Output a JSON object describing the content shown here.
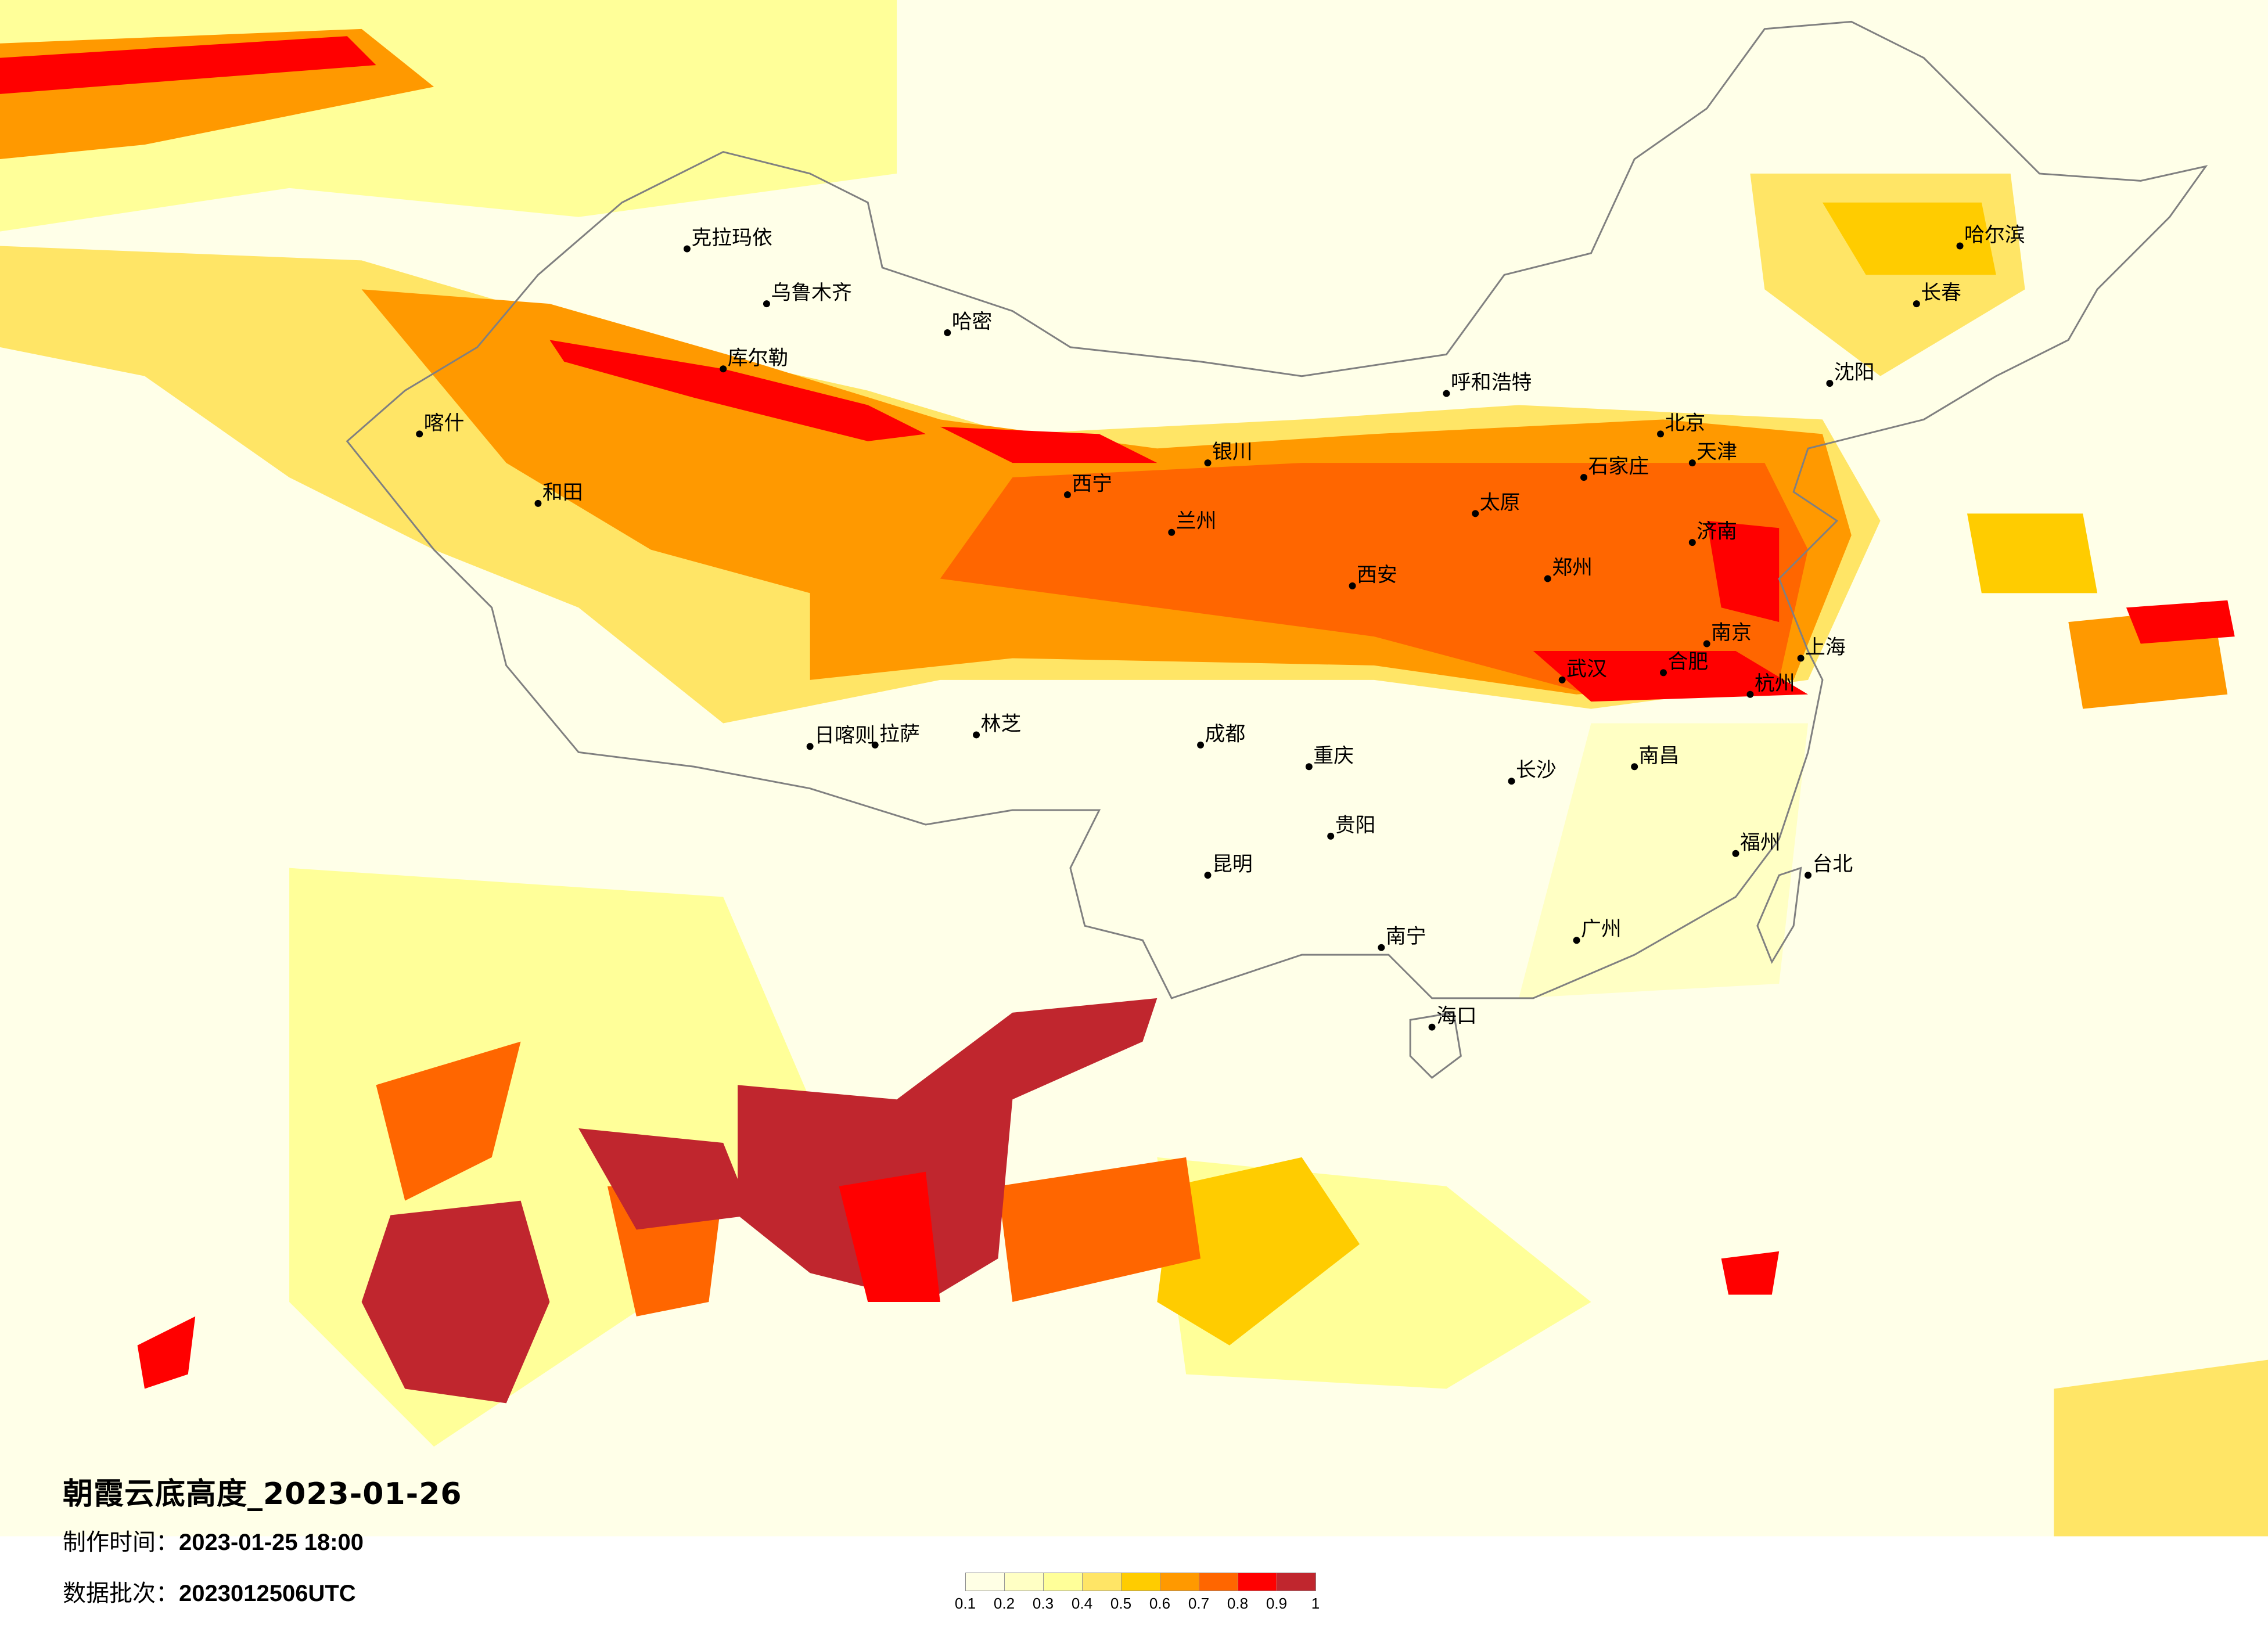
{
  "title": "朝霞云底高度_2023-01-26",
  "production_time_label": "制作时间：",
  "production_time": "2023-01-25 18:00",
  "batch_label": "数据批次：",
  "batch": "2023012506UTC",
  "legend": {
    "colors": [
      "#FFFFE5",
      "#FFFFC4",
      "#FFFF99",
      "#FFE566",
      "#FFCC00",
      "#FF9900",
      "#FF6600",
      "#FF0000",
      "#C0262E"
    ],
    "labels": [
      "0.1",
      "0.2",
      "0.3",
      "0.4",
      "0.5",
      "0.6",
      "0.7",
      "0.8",
      "0.9",
      "1"
    ]
  },
  "map": {
    "background_color": "#FFFFE8",
    "boundary_color": "#808080",
    "cities": [
      "克拉玛依",
      "乌鲁木齐",
      "哈密",
      "库尔勒",
      "喀什",
      "和田",
      "拉萨",
      "日喀则",
      "林芝",
      "西宁",
      "兰州",
      "银川",
      "呼和浩特",
      "北京",
      "天津",
      "石家庄",
      "太原",
      "济南",
      "郑州",
      "西安",
      "成都",
      "重庆",
      "贵阳",
      "昆明",
      "南宁",
      "广州",
      "长沙",
      "武汉",
      "南昌",
      "福州",
      "杭州",
      "上海",
      "南京",
      "合肥",
      "哈尔滨",
      "长春",
      "沈阳",
      "海口",
      "台北"
    ]
  }
}
